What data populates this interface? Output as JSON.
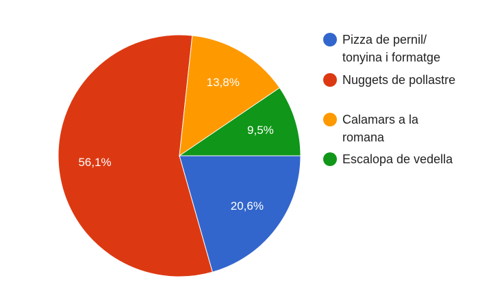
{
  "chart_data": {
    "type": "pie",
    "categories": [
      "Pizza de pernil/ tonyina i formatge",
      "Nuggets de pollastre",
      "Calamars a la romana",
      "Escalopa de vedella"
    ],
    "values": [
      20.6,
      56.1,
      13.8,
      9.5
    ],
    "value_labels": [
      "20,6%",
      "56,1%",
      "13,8%",
      "9,5%"
    ],
    "colors": [
      "#3366cc",
      "#dc3912",
      "#ff9900",
      "#109618"
    ],
    "legend": "right"
  }
}
